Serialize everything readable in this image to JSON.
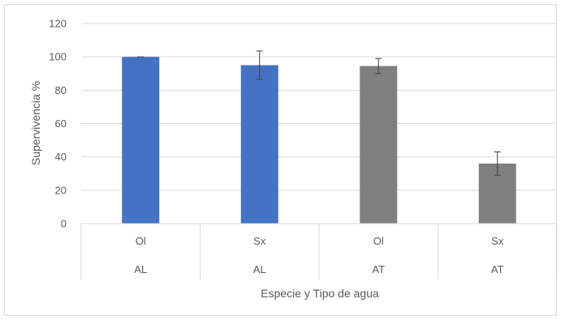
{
  "chart_data": {
    "type": "bar",
    "title": "",
    "ylabel": "Supervivencia %",
    "xlabel": "Especie  y Tipo de agua",
    "ylim": [
      0,
      120
    ],
    "yticks": [
      0,
      20,
      40,
      60,
      80,
      100,
      120
    ],
    "grid": true,
    "categories": [
      {
        "especie": "Ol",
        "tipo": "AL"
      },
      {
        "especie": "Sx",
        "tipo": "AL"
      },
      {
        "especie": "Ol",
        "tipo": "AT"
      },
      {
        "especie": "Sx",
        "tipo": "AT"
      }
    ],
    "values": [
      100,
      95,
      94.5,
      36
    ],
    "error": [
      0,
      8.5,
      4.5,
      7
    ],
    "colors": [
      "#4472c4",
      "#4472c4",
      "#7f7f7f",
      "#7f7f7f"
    ]
  }
}
